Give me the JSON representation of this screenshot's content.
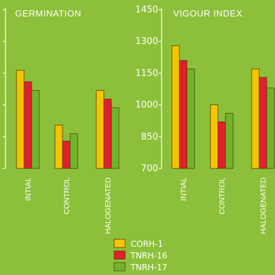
{
  "chart_data": [
    {
      "type": "bar",
      "title": "GERMINATION",
      "categories": [
        "INTIAL",
        "CONTROL",
        "HALOGENATED"
      ],
      "series": [
        {
          "name": "CORH-1",
          "values": [
            88,
            50,
            74
          ]
        },
        {
          "name": "TNRH-16",
          "values": [
            80,
            39,
            68
          ]
        },
        {
          "name": "TNRH-17",
          "values": [
            74,
            44,
            62
          ]
        }
      ],
      "ylim": [
        20,
        130
      ],
      "yticks": [],
      "grid": false
    },
    {
      "type": "bar",
      "title": "VIGOUR INDEX",
      "categories": [
        "INTIAL",
        "CONTROL",
        "HALOGENATED"
      ],
      "series": [
        {
          "name": "CORH-1",
          "values": [
            1280,
            1000,
            1170
          ]
        },
        {
          "name": "TNRH-16",
          "values": [
            1210,
            920,
            1130
          ]
        },
        {
          "name": "TNRH-17",
          "values": [
            1170,
            960,
            1080
          ]
        }
      ],
      "ylim": [
        700,
        1450
      ],
      "yticks": [
        "700",
        "850",
        "1000",
        "1150",
        "1300",
        "1450"
      ],
      "grid": false
    }
  ],
  "legend": {
    "placement": "bottom-center",
    "items": [
      {
        "name": "CORH-1",
        "color": "#f5c400"
      },
      {
        "name": "TNRH-16",
        "color": "#e0202a"
      },
      {
        "name": "TNRH-17",
        "color": "#6fb52c"
      }
    ]
  },
  "colors": {
    "background": "#8dc03a",
    "axis": "#ffffff",
    "bar_border": "#5a3a10"
  }
}
